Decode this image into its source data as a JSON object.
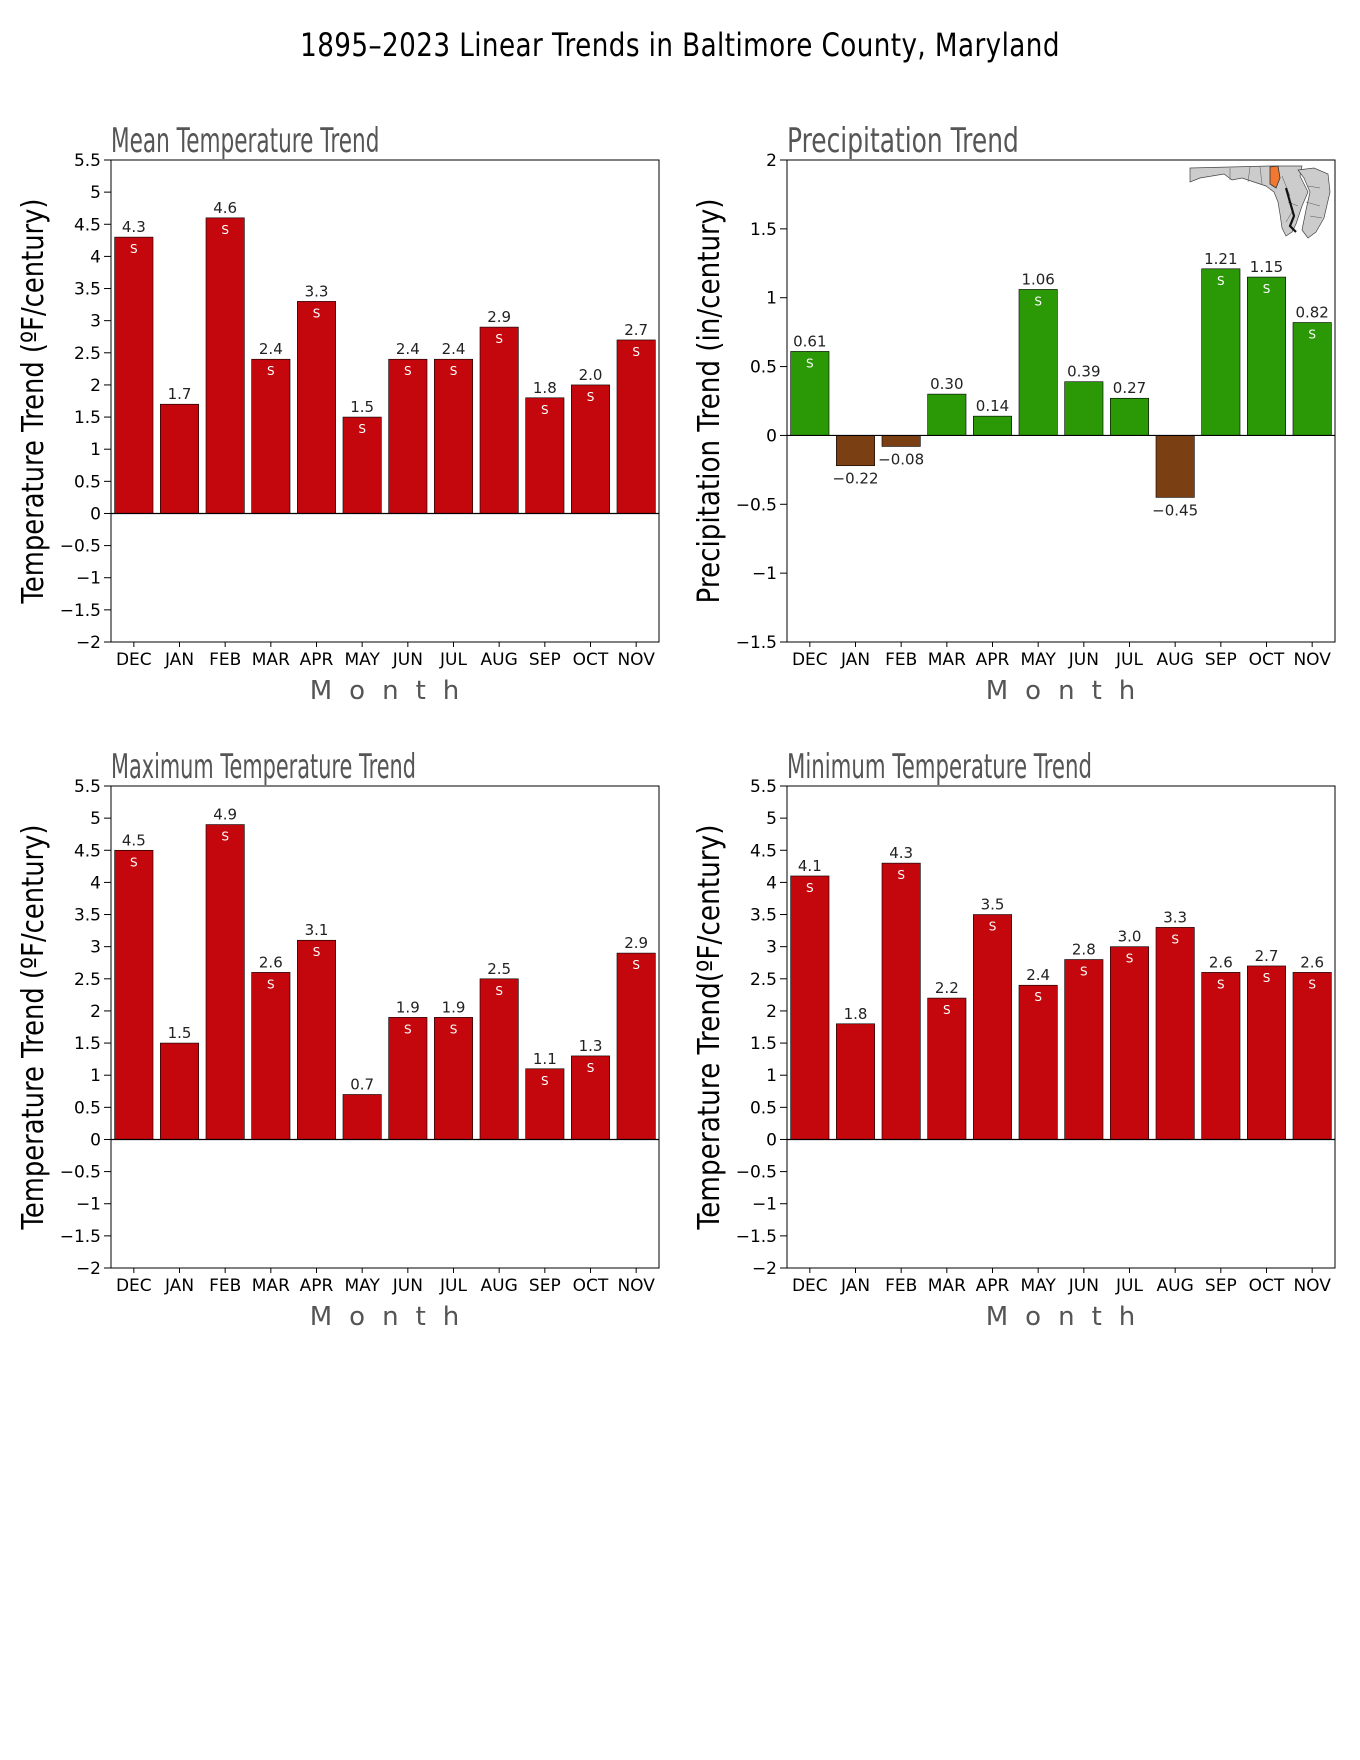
{
  "page": {
    "title": "1895–2023 Linear Trends in Baltimore County, Maryland"
  },
  "colors": {
    "temperature_bar": "#c4070c",
    "precip_positive": "#2a9905",
    "precip_negative": "#7b3f14",
    "map_highlight": "#f07830",
    "map_fill": "#cccccc"
  },
  "icons": {
    "locator": "maryland-locator-map-icon"
  },
  "chart_data": [
    {
      "type": "bar",
      "title": "Mean Temperature Trend",
      "xlabel": "M o n t h",
      "ylabel": "Temperature Trend (ºF/century)",
      "categories": [
        "DEC",
        "JAN",
        "FEB",
        "MAR",
        "APR",
        "MAY",
        "JUN",
        "JUL",
        "AUG",
        "SEP",
        "OCT",
        "NOV"
      ],
      "values": [
        4.3,
        1.7,
        4.6,
        2.4,
        3.3,
        1.5,
        2.4,
        2.4,
        2.9,
        1.8,
        2.0,
        2.7
      ],
      "value_labels": [
        "4.3",
        "1.7",
        "4.6",
        "2.4",
        "3.3",
        "1.5",
        "2.4",
        "2.4",
        "2.9",
        "1.8",
        "2.0",
        "2.7"
      ],
      "significance": [
        "S",
        "",
        "S",
        "S",
        "S",
        "S",
        "S",
        "S",
        "S",
        "S",
        "S",
        "S"
      ],
      "ylim": [
        -2,
        5.5
      ],
      "yticks": [
        -2,
        -1.5,
        -1,
        -0.5,
        0,
        0.5,
        1,
        1.5,
        2,
        2.5,
        3,
        3.5,
        4,
        4.5,
        5,
        5.5
      ],
      "ytick_labels": [
        "−2",
        "−1.5",
        "−1",
        "−0.5",
        "0",
        "0.5",
        "1",
        "1.5",
        "2",
        "2.5",
        "3",
        "3.5",
        "4",
        "4.5",
        "5",
        "5.5"
      ],
      "grid": false,
      "legend": "none"
    },
    {
      "type": "bar",
      "title": "Precipitation Trend",
      "xlabel": "M o n t h",
      "ylabel": "Precipitation Trend (in/century)",
      "categories": [
        "DEC",
        "JAN",
        "FEB",
        "MAR",
        "APR",
        "MAY",
        "JUN",
        "JUL",
        "AUG",
        "SEP",
        "OCT",
        "NOV"
      ],
      "values": [
        0.61,
        -0.22,
        -0.08,
        0.3,
        0.14,
        1.06,
        0.39,
        0.27,
        -0.45,
        1.21,
        1.15,
        0.82
      ],
      "value_labels": [
        "0.61",
        "−0.22",
        "−0.08",
        "0.30",
        "0.14",
        "1.06",
        "0.39",
        "0.27",
        "−0.45",
        "1.21",
        "1.15",
        "0.82"
      ],
      "significance": [
        "S",
        "",
        "",
        "",
        "",
        "S",
        "",
        "",
        "",
        "S",
        "S",
        "S"
      ],
      "ylim": [
        -1.5,
        2
      ],
      "yticks": [
        -1.5,
        -1,
        -0.5,
        0,
        0.5,
        1,
        1.5,
        2
      ],
      "ytick_labels": [
        "−1.5",
        "−1",
        "−0.5",
        "0",
        "0.5",
        "1",
        "1.5",
        "2"
      ],
      "grid": false,
      "legend": "none"
    },
    {
      "type": "bar",
      "title": "Maximum Temperature Trend",
      "xlabel": "M o n t h",
      "ylabel": "Temperature Trend (ºF/century)",
      "categories": [
        "DEC",
        "JAN",
        "FEB",
        "MAR",
        "APR",
        "MAY",
        "JUN",
        "JUL",
        "AUG",
        "SEP",
        "OCT",
        "NOV"
      ],
      "values": [
        4.5,
        1.5,
        4.9,
        2.6,
        3.1,
        0.7,
        1.9,
        1.9,
        2.5,
        1.1,
        1.3,
        2.9
      ],
      "value_labels": [
        "4.5",
        "1.5",
        "4.9",
        "2.6",
        "3.1",
        "0.7",
        "1.9",
        "1.9",
        "2.5",
        "1.1",
        "1.3",
        "2.9"
      ],
      "significance": [
        "S",
        "",
        "S",
        "S",
        "S",
        "",
        "S",
        "S",
        "S",
        "S",
        "S",
        "S"
      ],
      "ylim": [
        -2,
        5.5
      ],
      "yticks": [
        -2,
        -1.5,
        -1,
        -0.5,
        0,
        0.5,
        1,
        1.5,
        2,
        2.5,
        3,
        3.5,
        4,
        4.5,
        5,
        5.5
      ],
      "ytick_labels": [
        "−2",
        "−1.5",
        "−1",
        "−0.5",
        "0",
        "0.5",
        "1",
        "1.5",
        "2",
        "2.5",
        "3",
        "3.5",
        "4",
        "4.5",
        "5",
        "5.5"
      ],
      "grid": false,
      "legend": "none"
    },
    {
      "type": "bar",
      "title": "Minimum Temperature Trend",
      "xlabel": "M o n t h",
      "ylabel": "Temperature Trend(ºF/century)",
      "categories": [
        "DEC",
        "JAN",
        "FEB",
        "MAR",
        "APR",
        "MAY",
        "JUN",
        "JUL",
        "AUG",
        "SEP",
        "OCT",
        "NOV"
      ],
      "values": [
        4.1,
        1.8,
        4.3,
        2.2,
        3.5,
        2.4,
        2.8,
        3.0,
        3.3,
        2.6,
        2.7,
        2.6
      ],
      "value_labels": [
        "4.1",
        "1.8",
        "4.3",
        "2.2",
        "3.5",
        "2.4",
        "2.8",
        "3.0",
        "3.3",
        "2.6",
        "2.7",
        "2.6"
      ],
      "significance": [
        "S",
        "",
        "S",
        "S",
        "S",
        "S",
        "S",
        "S",
        "S",
        "S",
        "S",
        "S"
      ],
      "ylim": [
        -2,
        5.5
      ],
      "yticks": [
        -2,
        -1.5,
        -1,
        -0.5,
        0,
        0.5,
        1,
        1.5,
        2,
        2.5,
        3,
        3.5,
        4,
        4.5,
        5,
        5.5
      ],
      "ytick_labels": [
        "−2",
        "−1.5",
        "−1",
        "−0.5",
        "0",
        "0.5",
        "1",
        "1.5",
        "2",
        "2.5",
        "3",
        "3.5",
        "4",
        "4.5",
        "5",
        "5.5"
      ],
      "grid": false,
      "legend": "none"
    }
  ]
}
